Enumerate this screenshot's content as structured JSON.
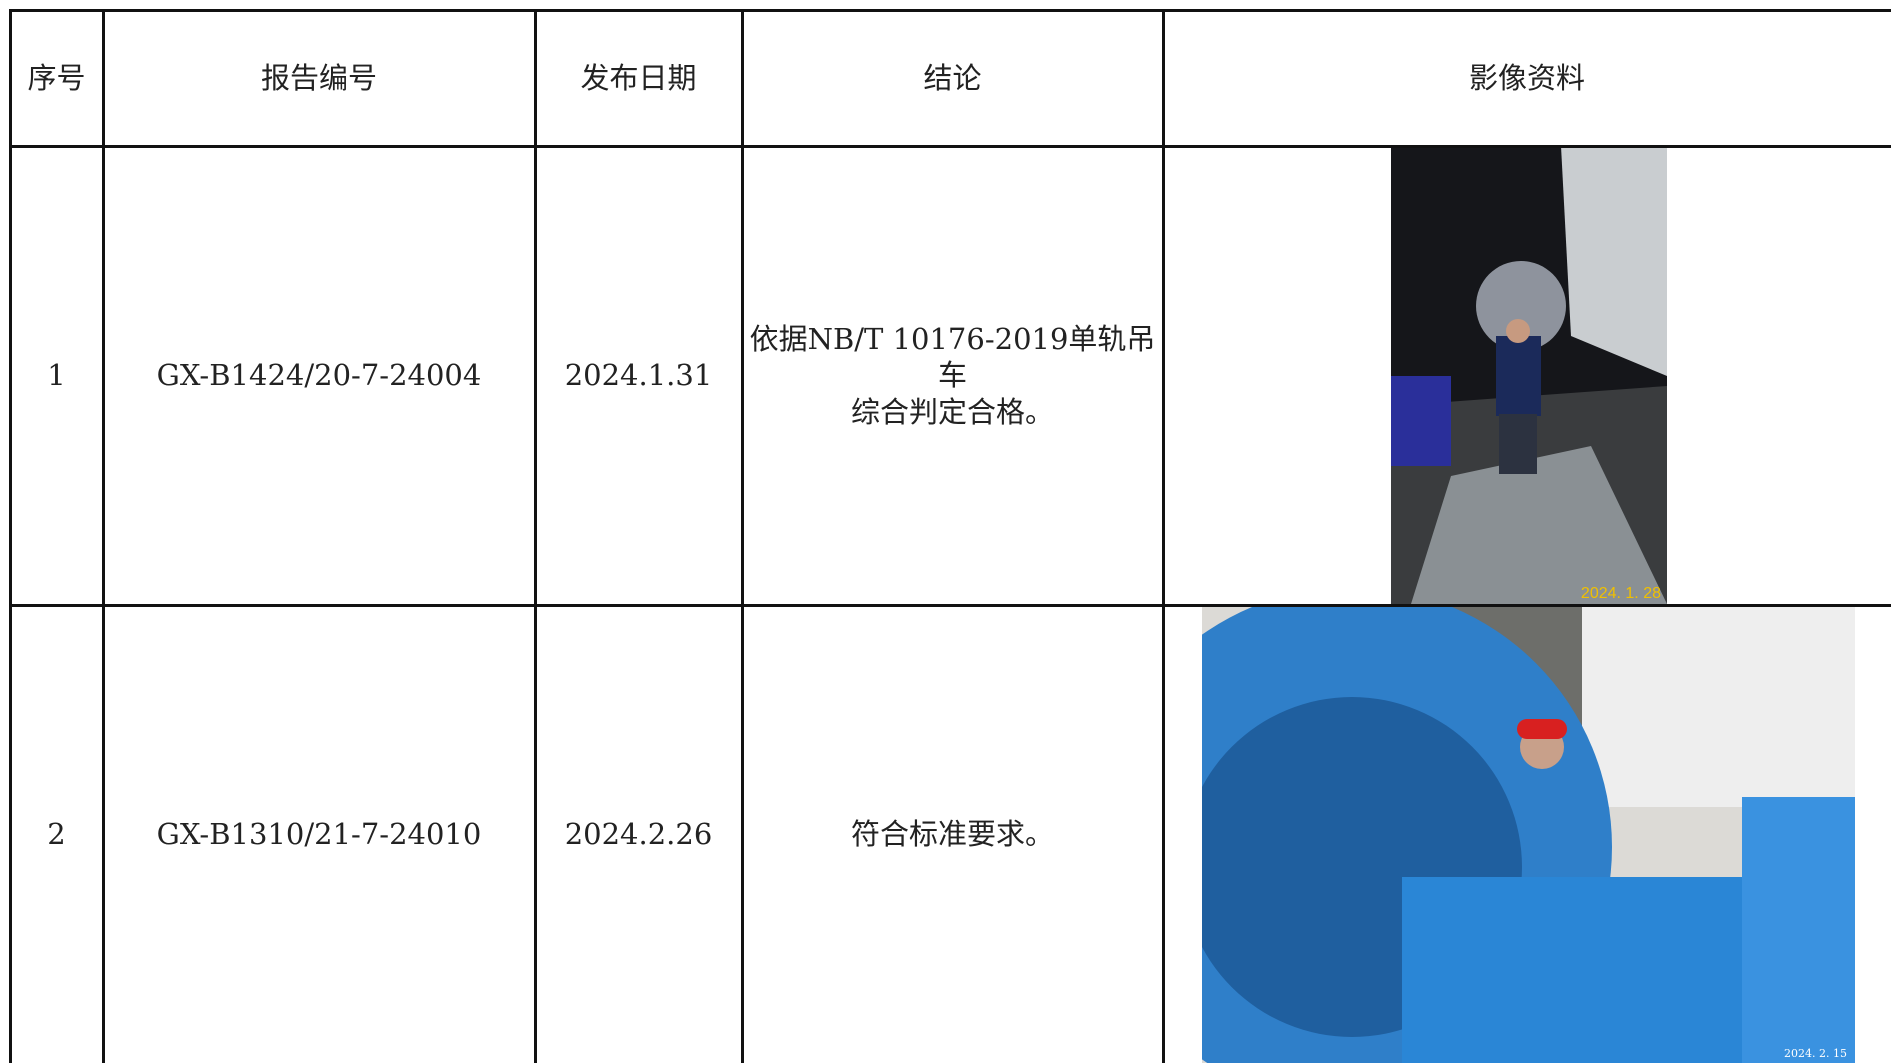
{
  "table": {
    "headers": [
      "序号",
      "报告编号",
      "发布日期",
      "结论",
      "影像资料"
    ],
    "rows": [
      {
        "no": "1",
        "report": "GX-B1424/20-7-24004",
        "date": "2024.1.31",
        "conclusion": [
          "依据NB/T 10176-2019单轨吊车",
          "综合判定合格。"
        ],
        "photo_stamp": "2024. 1. 28"
      },
      {
        "no": "2",
        "report": "GX-B1310/21-7-24010",
        "date": "2024.2.26",
        "conclusion": [
          "符合标准要求。"
        ],
        "photo_stamp": "2024. 2. 15"
      }
    ]
  }
}
